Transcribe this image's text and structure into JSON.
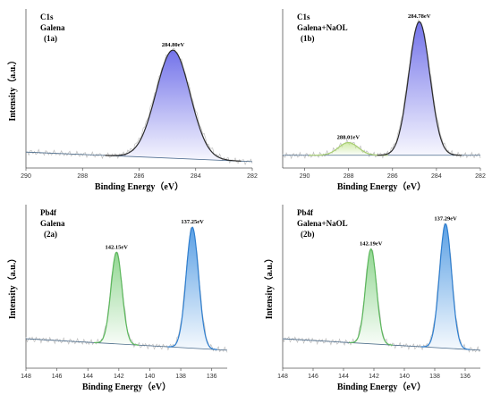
{
  "chart_data": [
    {
      "id": "1a",
      "type": "line",
      "title_lines": [
        "C1s",
        "Galena",
        "(1a)"
      ],
      "xlabel": "Binding Energy（eV）",
      "ylabel": "Intensity（a.u.）",
      "xlim": [
        290,
        282
      ],
      "xticks": [
        290,
        288,
        286,
        284,
        282
      ],
      "baseline": [
        0.1,
        0.04
      ],
      "peaks": [
        {
          "label": "284.80eV",
          "center": 284.8,
          "height": 0.68,
          "width": 0.6,
          "color": "#2b2b2b",
          "fill": "#5a5ae6"
        }
      ]
    },
    {
      "id": "1b",
      "type": "line",
      "title_lines": [
        "C1s",
        "Galena+NaOL",
        "(1b)"
      ],
      "xlabel": "Binding Energy（eV）",
      "ylabel": "",
      "xlim": [
        291,
        282
      ],
      "xticks": [
        290,
        288,
        286,
        284,
        282
      ],
      "baseline": [
        0.08,
        0.08
      ],
      "peaks": [
        {
          "label": "288.01eV",
          "center": 288.01,
          "height": 0.08,
          "width": 0.45,
          "color": "#a8cf72",
          "fill": "#c9e89a"
        },
        {
          "label": "284.78eV",
          "center": 284.78,
          "height": 0.84,
          "width": 0.48,
          "color": "#2b2b2b",
          "fill": "#5a5ae6"
        }
      ]
    },
    {
      "id": "2a",
      "type": "line",
      "title_lines": [
        "Pb4f",
        "Galena",
        "(2a)"
      ],
      "xlabel": "Binding Energy（eV）",
      "ylabel": "Intensity（a.u.）",
      "xlim": [
        148,
        135
      ],
      "xticks": [
        148,
        146,
        144,
        142,
        140,
        138,
        136
      ],
      "baseline": [
        0.18,
        0.11
      ],
      "peaks": [
        {
          "label": "142.15eV",
          "center": 142.15,
          "height": 0.56,
          "width": 0.36,
          "color": "#5cb85c",
          "fill": "#7fd07f"
        },
        {
          "label": "137.25eV",
          "center": 137.25,
          "height": 0.74,
          "width": 0.4,
          "color": "#2f7fd0",
          "fill": "#3d8fe0"
        }
      ]
    },
    {
      "id": "2b",
      "type": "line",
      "title_lines": [
        "Pb4f",
        "Galena+NaOL",
        "(2b)"
      ],
      "xlabel": "Binding Energy（eV）",
      "ylabel": "Intensity（a.u.）",
      "xlim": [
        148,
        135
      ],
      "xticks": [
        148,
        146,
        144,
        142,
        140,
        138,
        136
      ],
      "baseline": [
        0.18,
        0.11
      ],
      "peaks": [
        {
          "label": "142.19eV",
          "center": 142.19,
          "height": 0.58,
          "width": 0.36,
          "color": "#5cb85c",
          "fill": "#7fd07f"
        },
        {
          "label": "137.29eV",
          "center": 137.29,
          "height": 0.76,
          "width": 0.4,
          "color": "#2f7fd0",
          "fill": "#3d8fe0"
        }
      ]
    }
  ]
}
